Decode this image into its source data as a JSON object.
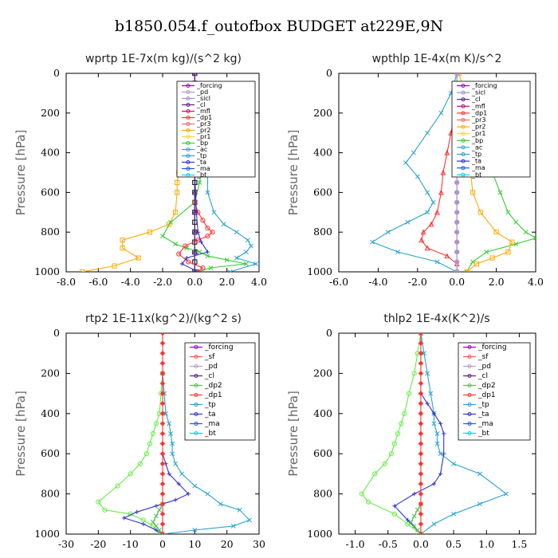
{
  "title": "b1850.054.f_outofbox  BUDGET at229E,9N",
  "colors": {
    "forcing": "#9c00c8",
    "pd": "#bb99cc",
    "sicl": "#a08fd0",
    "cl": "#5a1f8c",
    "mfl": "#c01070",
    "dp1": "#ff3333",
    "pr3": "#ff6060",
    "pr2": "#ffaa00",
    "pr1": "#ffd633",
    "bp": "#33cc33",
    "ac": "#3aa0d8",
    "tp": "#2aa3d0",
    "ta": "#3333cc",
    "ma": "#2255ee",
    "bt": "#00d4ee",
    "sf": "#ff5050",
    "dp2": "#55bb55",
    "dp1g": "#66ee44"
  },
  "chart_data": [
    {
      "type": "line",
      "title": "wprtp  1E-7x(m kg)/(s^2 kg)",
      "ylabel": "Pressure [hPa]",
      "xlim": [
        -8,
        4
      ],
      "ylim": [
        1000,
        0
      ],
      "xticks": [
        "-8.0",
        "-6.0",
        "-4.0",
        "-2.0",
        "0.0",
        "2.0",
        "4.0"
      ],
      "yticks": [
        "0",
        "200",
        "400",
        "600",
        "800",
        "1000"
      ],
      "legend": [
        "_forcing",
        "_pd",
        "_sicl",
        "_cl",
        "_mfl",
        "_dp1",
        "_pr3",
        "_pr2",
        "_pr1",
        "_bp",
        "_ac",
        "_tp",
        "_ta",
        "_ma",
        "_bt"
      ],
      "series": [
        {
          "name": "_forcing",
          "color": "#000000",
          "marker": "square",
          "x": [
            0,
            0,
            0,
            0,
            0,
            0,
            0,
            0,
            0,
            0,
            0,
            0,
            0,
            0,
            0,
            0,
            0,
            0,
            0,
            0,
            0
          ],
          "y": [
            0,
            50,
            100,
            150,
            200,
            250,
            300,
            350,
            400,
            450,
            500,
            550,
            600,
            650,
            700,
            750,
            800,
            850,
            900,
            950,
            1000
          ]
        },
        {
          "name": "_pr2",
          "color": "#ffaa00",
          "marker": "square",
          "x": [
            0,
            -0.1,
            -0.2,
            -0.4,
            -0.8,
            -1.0,
            -1.1,
            -1.1,
            -1.2,
            -1.6,
            -2.8,
            -4.5,
            -4.5,
            -3.5,
            -5.0,
            -7.0
          ],
          "y": [
            250,
            300,
            350,
            400,
            450,
            500,
            550,
            600,
            700,
            760,
            800,
            840,
            880,
            930,
            970,
            1000
          ]
        },
        {
          "name": "_bp",
          "color": "#33cc33",
          "marker": "x",
          "x": [
            0,
            0.2,
            0.4,
            0.5,
            0.3,
            0,
            -1.5,
            -2.0,
            -1.2,
            -0.5,
            0.3,
            0.8,
            2.0,
            3.2,
            1.0,
            0.2
          ],
          "y": [
            300,
            350,
            400,
            450,
            550,
            650,
            750,
            820,
            860,
            880,
            900,
            920,
            940,
            960,
            980,
            1000
          ]
        },
        {
          "name": "_dp1",
          "color": "#ff3333",
          "marker": "circle",
          "x": [
            0,
            0.2,
            0.5,
            0.8,
            1.1,
            0.8,
            0.2,
            -0.6,
            -1.0,
            -0.4,
            0.5,
            0.2
          ],
          "y": [
            650,
            700,
            740,
            780,
            800,
            820,
            840,
            870,
            910,
            950,
            980,
            1000
          ]
        },
        {
          "name": "_tp",
          "color": "#2aa3d0",
          "marker": "x",
          "x": [
            0,
            0.3,
            0.6,
            0.8,
            0.8,
            1.2,
            1.8,
            2.6,
            3.3,
            3.5,
            3.2,
            2.6,
            3.8,
            2.2
          ],
          "y": [
            200,
            300,
            400,
            500,
            600,
            700,
            760,
            800,
            840,
            870,
            900,
            930,
            960,
            1000
          ]
        },
        {
          "name": "_ta",
          "color": "#3333cc",
          "marker": "plus",
          "x": [
            0,
            0.1,
            0.2,
            0.4,
            0.8,
            -0.5,
            -0.8,
            0.2
          ],
          "y": [
            500,
            700,
            800,
            850,
            900,
            930,
            960,
            1000
          ]
        },
        {
          "name": "_cl",
          "color": "#5a1f8c",
          "marker": "tri",
          "x": [
            0,
            0,
            0,
            0,
            0,
            0,
            0,
            0,
            0,
            0,
            0
          ],
          "y": [
            0,
            100,
            200,
            300,
            400,
            500,
            600,
            700,
            800,
            900,
            1000
          ]
        }
      ]
    },
    {
      "type": "line",
      "title": "wpthlp  1E-4x(m K)/s^2",
      "ylabel": "Pressure [hPa]",
      "xlim": [
        -6,
        4
      ],
      "ylim": [
        1000,
        0
      ],
      "xticks": [
        "-6.0",
        "-4.0",
        "-2.0",
        "0.0",
        "2.0",
        "4.0"
      ],
      "yticks": [
        "0",
        "200",
        "400",
        "600",
        "800",
        "1000"
      ],
      "legend": [
        "_forcing",
        "_sicl",
        "_cl",
        "_mfl",
        "_dp1",
        "_pr3",
        "_pr2",
        "_pr1",
        "_bp",
        "_ac",
        "_tp",
        "_ta",
        "_ma",
        "_bt"
      ],
      "series": [
        {
          "name": "_tp",
          "color": "#2aa3d0",
          "marker": "x",
          "x": [
            0,
            -0.3,
            -0.8,
            -1.5,
            -2.2,
            -2.6,
            -2.0,
            -1.5,
            -1.2,
            -1.5,
            -2.5,
            -3.5,
            -4.3,
            -3.0,
            -1.0,
            0
          ],
          "y": [
            0,
            100,
            200,
            300,
            400,
            450,
            520,
            600,
            650,
            700,
            750,
            800,
            850,
            900,
            950,
            1000
          ]
        },
        {
          "name": "_dp1",
          "color": "#ff3333",
          "marker": "tri",
          "x": [
            0,
            -0.1,
            -0.3,
            -0.5,
            -0.7,
            -0.8,
            -1.0,
            -1.3,
            -1.7,
            -1.8,
            -1.5,
            -0.5,
            0
          ],
          "y": [
            150,
            200,
            300,
            400,
            500,
            600,
            700,
            760,
            800,
            840,
            880,
            920,
            960
          ]
        },
        {
          "name": "_bp",
          "color": "#33cc33",
          "marker": "x",
          "x": [
            0,
            0.2,
            0.6,
            1.2,
            1.8,
            2.2,
            2.6,
            3.0,
            3.5,
            4.0,
            3.0,
            1.5,
            0.8,
            0.5
          ],
          "y": [
            50,
            150,
            300,
            400,
            500,
            600,
            700,
            750,
            800,
            830,
            860,
            900,
            950,
            1000
          ]
        },
        {
          "name": "_pr2",
          "color": "#ffaa00",
          "marker": "square",
          "x": [
            0.1,
            0.4,
            0.8,
            0.9,
            0.8,
            0.7,
            0.8,
            1.2,
            2.0,
            2.8,
            2.6,
            1.8,
            1.0,
            0.5
          ],
          "y": [
            0,
            100,
            200,
            300,
            400,
            500,
            600,
            700,
            800,
            850,
            900,
            930,
            960,
            1000
          ]
        },
        {
          "name": "_sicl",
          "color": "#a08fd0",
          "marker": "star",
          "x": [
            0,
            0,
            0,
            0,
            0,
            0,
            0,
            0,
            0,
            0,
            0,
            0,
            0,
            0,
            0,
            0,
            0,
            0,
            0,
            0,
            0
          ],
          "y": [
            0,
            50,
            100,
            150,
            200,
            250,
            300,
            350,
            400,
            450,
            500,
            550,
            600,
            650,
            700,
            750,
            800,
            850,
            900,
            950,
            1000
          ]
        },
        {
          "name": "_forcing",
          "color": "#bb99cc",
          "marker": "circle",
          "x": [
            0,
            0,
            0,
            0,
            0,
            0,
            0,
            0,
            0,
            0,
            0,
            0,
            0,
            0,
            0,
            0,
            0,
            0,
            0,
            0,
            0
          ],
          "y": [
            0,
            50,
            100,
            150,
            200,
            250,
            300,
            350,
            400,
            450,
            500,
            550,
            600,
            650,
            700,
            750,
            800,
            850,
            900,
            950,
            1000
          ]
        }
      ]
    },
    {
      "type": "line",
      "title": "rtp2  1E-11x(kg^2)/(kg^2 s)",
      "ylabel": "Pressure [hPa]",
      "xlim": [
        -30,
        30
      ],
      "ylim": [
        1000,
        0
      ],
      "xticks": [
        "-30",
        "-20",
        "-10",
        "0",
        "10",
        "20",
        "30"
      ],
      "yticks": [
        "0",
        "200",
        "400",
        "600",
        "800",
        "1000"
      ],
      "legend": [
        "_forcing",
        "_sf",
        "_pd",
        "_cl",
        "_dp2",
        "_dp1",
        "_tp",
        "_ta",
        "_ma",
        "_bt"
      ],
      "series": [
        {
          "name": "_dp1",
          "color": "#66ee44",
          "marker": "circle",
          "x": [
            0,
            -0.5,
            -1,
            -2,
            -3,
            -4,
            -5,
            -7,
            -10,
            -14,
            -20,
            -18,
            -10,
            -6,
            -3,
            -1
          ],
          "y": [
            200,
            300,
            400,
            450,
            500,
            550,
            600,
            650,
            700,
            760,
            840,
            880,
            900,
            930,
            960,
            1000
          ]
        },
        {
          "name": "_tp",
          "color": "#2aa3d0",
          "marker": "x",
          "x": [
            0,
            0.5,
            1,
            2,
            2.5,
            3,
            3,
            4,
            6,
            10,
            14,
            18,
            24,
            27,
            22,
            10,
            0
          ],
          "y": [
            200,
            300,
            400,
            450,
            500,
            550,
            600,
            650,
            700,
            760,
            800,
            850,
            880,
            930,
            960,
            980,
            1000
          ]
        },
        {
          "name": "_ta",
          "color": "#3333cc",
          "marker": "plus",
          "x": [
            0,
            1,
            2,
            5,
            8,
            4,
            -2,
            -8,
            -12,
            -6,
            -2,
            0
          ],
          "y": [
            600,
            650,
            700,
            750,
            800,
            830,
            860,
            890,
            920,
            950,
            980,
            1000
          ]
        },
        {
          "name": "_dp2",
          "color": "#55bb55",
          "marker": "x",
          "x": [
            0,
            -1,
            -2,
            -3,
            -2,
            -1,
            0
          ],
          "y": [
            850,
            880,
            910,
            940,
            960,
            980,
            1000
          ]
        },
        {
          "name": "_forcing",
          "color": "#ff3333",
          "marker": "diamond",
          "x": [
            0,
            0,
            0,
            0,
            0,
            0,
            0,
            0,
            0,
            0,
            0,
            0,
            0,
            0,
            0,
            0,
            0,
            0,
            0,
            0,
            0
          ],
          "y": [
            0,
            50,
            100,
            150,
            200,
            250,
            300,
            350,
            400,
            450,
            500,
            550,
            600,
            650,
            700,
            750,
            800,
            850,
            900,
            950,
            1000
          ]
        }
      ]
    },
    {
      "type": "line",
      "title": "thlp2  1E-4x(K^2)/s",
      "ylabel": "Pressure [hPa]",
      "xlim": [
        -1.25,
        1.75
      ],
      "ylim": [
        1000,
        0
      ],
      "xticks": [
        "-1.0",
        "-0.5",
        "0.0",
        "0.5",
        "1.0",
        "1.5"
      ],
      "yticks": [
        "0",
        "200",
        "400",
        "600",
        "800",
        "1000"
      ],
      "legend": [
        "_forcing",
        "_sf",
        "_pd",
        "_cl",
        "_dp2",
        "_dp1",
        "_tp",
        "_ta",
        "_ma",
        "_bt"
      ],
      "series": [
        {
          "name": "_dp1",
          "color": "#66ee44",
          "marker": "circle",
          "x": [
            0,
            -0.05,
            -0.1,
            -0.18,
            -0.25,
            -0.3,
            -0.35,
            -0.4,
            -0.45,
            -0.55,
            -0.7,
            -0.9,
            -0.8,
            -0.4,
            -0.2,
            0
          ],
          "y": [
            0,
            100,
            200,
            300,
            400,
            450,
            500,
            550,
            600,
            650,
            700,
            800,
            840,
            900,
            950,
            1000
          ]
        },
        {
          "name": "_tp",
          "color": "#2aa3d0",
          "marker": "x",
          "x": [
            0,
            0.05,
            0.1,
            0.15,
            0.2,
            0.2,
            0.25,
            0.25,
            0.3,
            0.5,
            0.9,
            1.3,
            0.9,
            0.5,
            0.2,
            0
          ],
          "y": [
            0,
            100,
            200,
            300,
            400,
            450,
            500,
            550,
            600,
            650,
            700,
            800,
            850,
            900,
            950,
            1000
          ]
        },
        {
          "name": "_ta",
          "color": "#3333cc",
          "marker": "plus",
          "x": [
            0,
            0.1,
            0.2,
            0.3,
            0.35,
            0.35,
            0.3,
            0.2,
            -0.1,
            -0.4,
            -0.2,
            0
          ],
          "y": [
            300,
            350,
            400,
            450,
            500,
            600,
            700,
            750,
            800,
            860,
            930,
            1000
          ]
        },
        {
          "name": "_dp2",
          "color": "#55bb55",
          "marker": "x",
          "x": [
            0,
            -0.05,
            -0.1,
            -0.15,
            -0.1,
            -0.05,
            0
          ],
          "y": [
            850,
            880,
            910,
            940,
            960,
            980,
            1000
          ]
        },
        {
          "name": "_forcing",
          "color": "#ff3333",
          "marker": "diamond",
          "x": [
            0,
            0,
            0,
            0,
            0,
            0,
            0,
            0,
            0,
            0,
            0,
            0,
            0,
            0,
            0,
            0,
            0,
            0,
            0,
            0,
            0
          ],
          "y": [
            0,
            50,
            100,
            150,
            200,
            250,
            300,
            350,
            400,
            450,
            500,
            550,
            600,
            650,
            700,
            750,
            800,
            850,
            900,
            950,
            1000
          ]
        }
      ]
    }
  ]
}
